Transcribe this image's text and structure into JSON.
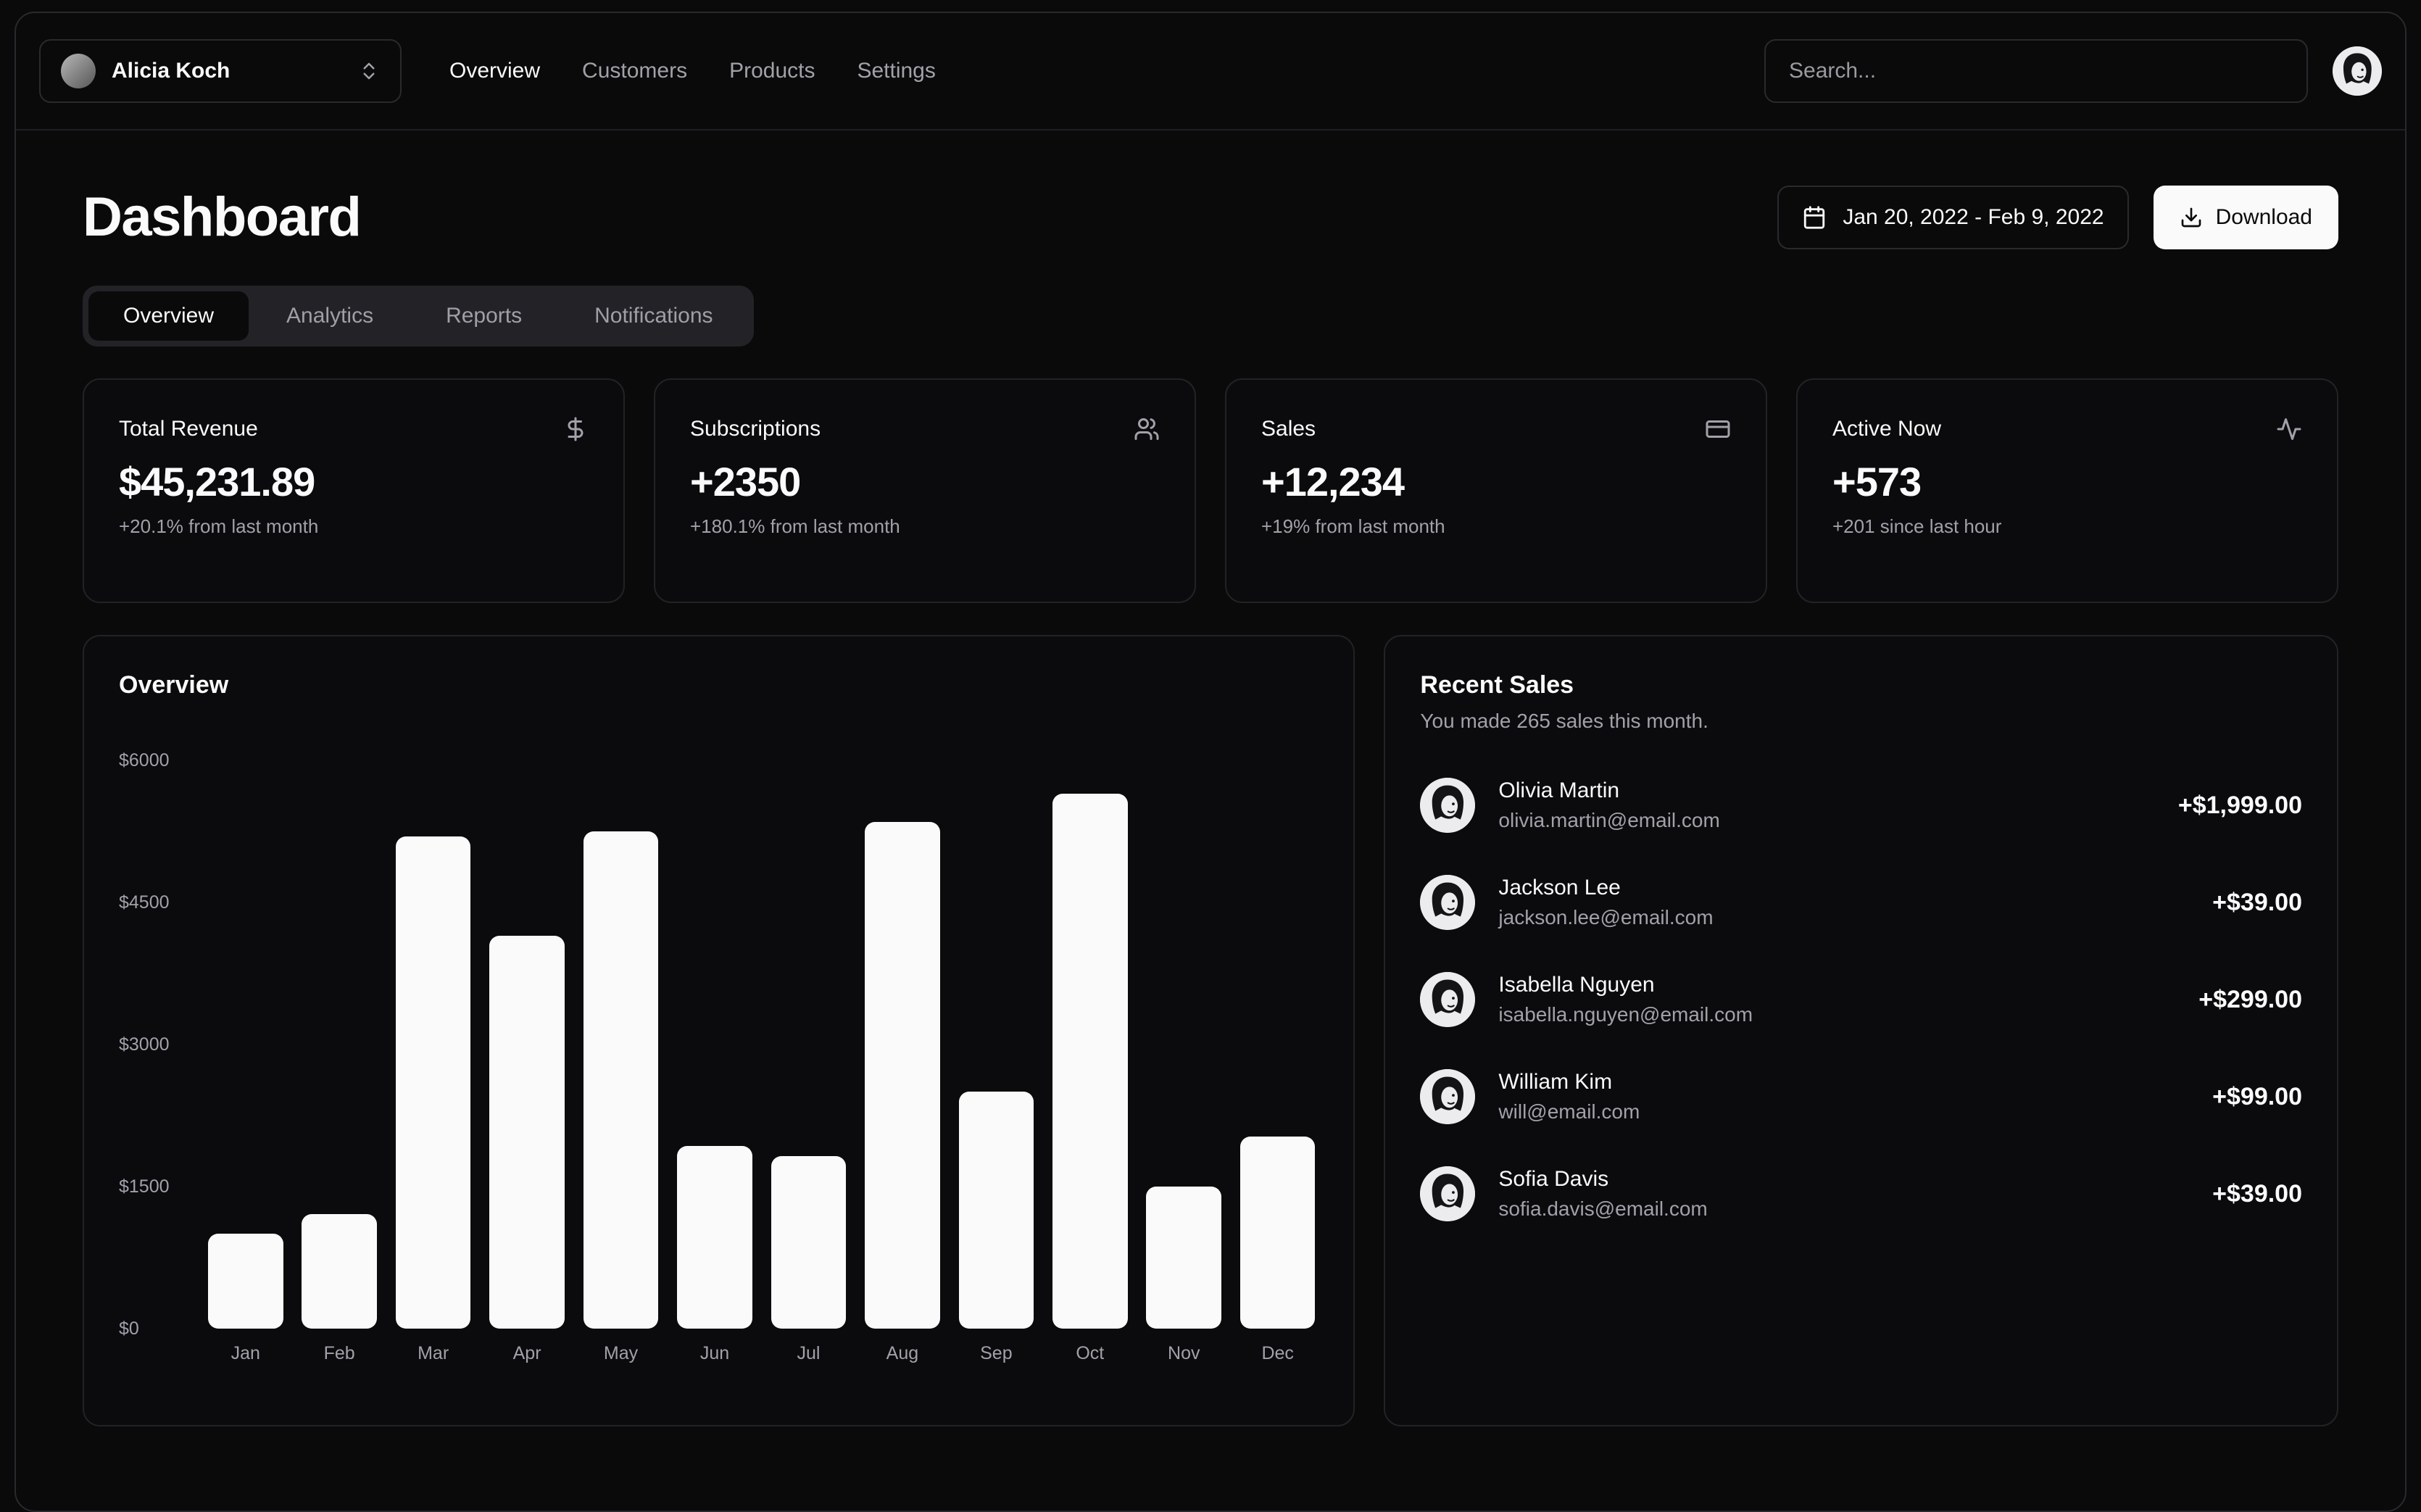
{
  "nav": {
    "team": "Alicia Koch",
    "links": [
      {
        "label": "Overview",
        "active": true
      },
      {
        "label": "Customers",
        "active": false
      },
      {
        "label": "Products",
        "active": false
      },
      {
        "label": "Settings",
        "active": false
      }
    ],
    "search_placeholder": "Search..."
  },
  "header": {
    "title": "Dashboard",
    "date_range": "Jan 20, 2022 - Feb 9, 2022",
    "download_label": "Download"
  },
  "tabs": [
    {
      "label": "Overview",
      "active": true
    },
    {
      "label": "Analytics",
      "active": false
    },
    {
      "label": "Reports",
      "active": false
    },
    {
      "label": "Notifications",
      "active": false
    }
  ],
  "stats": [
    {
      "title": "Total Revenue",
      "icon": "dollar-sign",
      "value": "$45,231.89",
      "change": "+20.1% from last month"
    },
    {
      "title": "Subscriptions",
      "icon": "users",
      "value": "+2350",
      "change": "+180.1% from last month"
    },
    {
      "title": "Sales",
      "icon": "credit-card",
      "value": "+12,234",
      "change": "+19% from last month"
    },
    {
      "title": "Active Now",
      "icon": "activity",
      "value": "+573",
      "change": "+201 since last hour"
    }
  ],
  "chart_card": {
    "title": "Overview"
  },
  "chart_data": {
    "type": "bar",
    "title": "Overview",
    "categories": [
      "Jan",
      "Feb",
      "Mar",
      "Apr",
      "May",
      "Jun",
      "Jul",
      "Aug",
      "Sep",
      "Oct",
      "Nov",
      "Dec"
    ],
    "values": [
      1000,
      1210,
      5200,
      4150,
      5250,
      1930,
      1820,
      5350,
      2500,
      5650,
      1500,
      2030
    ],
    "xlabel": "",
    "ylabel": "",
    "ylim": [
      0,
      6000
    ],
    "y_ticks": [
      "$6000",
      "$4500",
      "$3000",
      "$1500",
      "$0"
    ],
    "y_tick_values": [
      6000,
      4500,
      3000,
      1500,
      0
    ],
    "grid": false,
    "legend": "none",
    "bar_color": "#fafafa"
  },
  "recent_sales": {
    "title": "Recent Sales",
    "subtitle": "You made 265 sales this month.",
    "items": [
      {
        "name": "Olivia Martin",
        "email": "olivia.martin@email.com",
        "amount": "+$1,999.00"
      },
      {
        "name": "Jackson Lee",
        "email": "jackson.lee@email.com",
        "amount": "+$39.00"
      },
      {
        "name": "Isabella Nguyen",
        "email": "isabella.nguyen@email.com",
        "amount": "+$299.00"
      },
      {
        "name": "William Kim",
        "email": "will@email.com",
        "amount": "+$99.00"
      },
      {
        "name": "Sofia Davis",
        "email": "sofia.davis@email.com",
        "amount": "+$39.00"
      }
    ]
  },
  "colors": {
    "background": "#0a0a0b",
    "card": "#0b0b0d",
    "border": "#26262a",
    "foreground": "#fafafa",
    "muted_text": "#a1a1aa",
    "bar": "#fafafa",
    "primary_button": "#fafafa"
  }
}
